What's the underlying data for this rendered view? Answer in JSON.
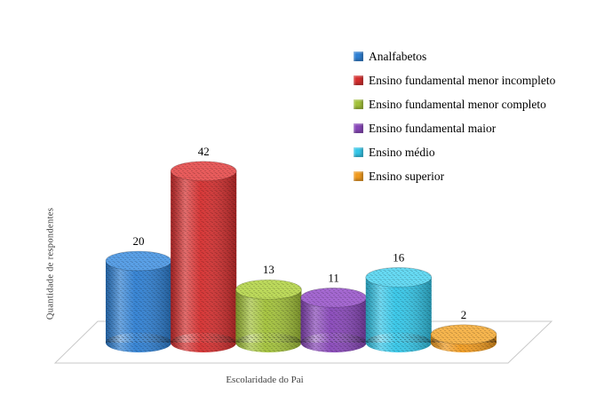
{
  "chart_data": {
    "type": "bar",
    "subtype": "3d-cylinder",
    "title": "",
    "categories": [
      "Analfabetos",
      "Ensino fundamental menor incompleto",
      "Ensino fundamental menor completo",
      "Ensino fundamental maior",
      "Ensino médio",
      "Ensino superior"
    ],
    "values": [
      20,
      42,
      13,
      11,
      16,
      2
    ],
    "colors": [
      "#2e7fd2",
      "#d42e2e",
      "#a2c139",
      "#8746b8",
      "#33c6e8",
      "#f09a1e"
    ],
    "colors_top": [
      "#5aa0e6",
      "#e85c5c",
      "#bcd95b",
      "#a468d0",
      "#66d9f2",
      "#f6b54e"
    ],
    "xlabel": "Escolaridade do Pai",
    "ylabel": "Quantidade de respondentes",
    "ylim": [
      0,
      45
    ],
    "grid": false,
    "legend_position": "top-right",
    "value_labels_shown": true
  }
}
